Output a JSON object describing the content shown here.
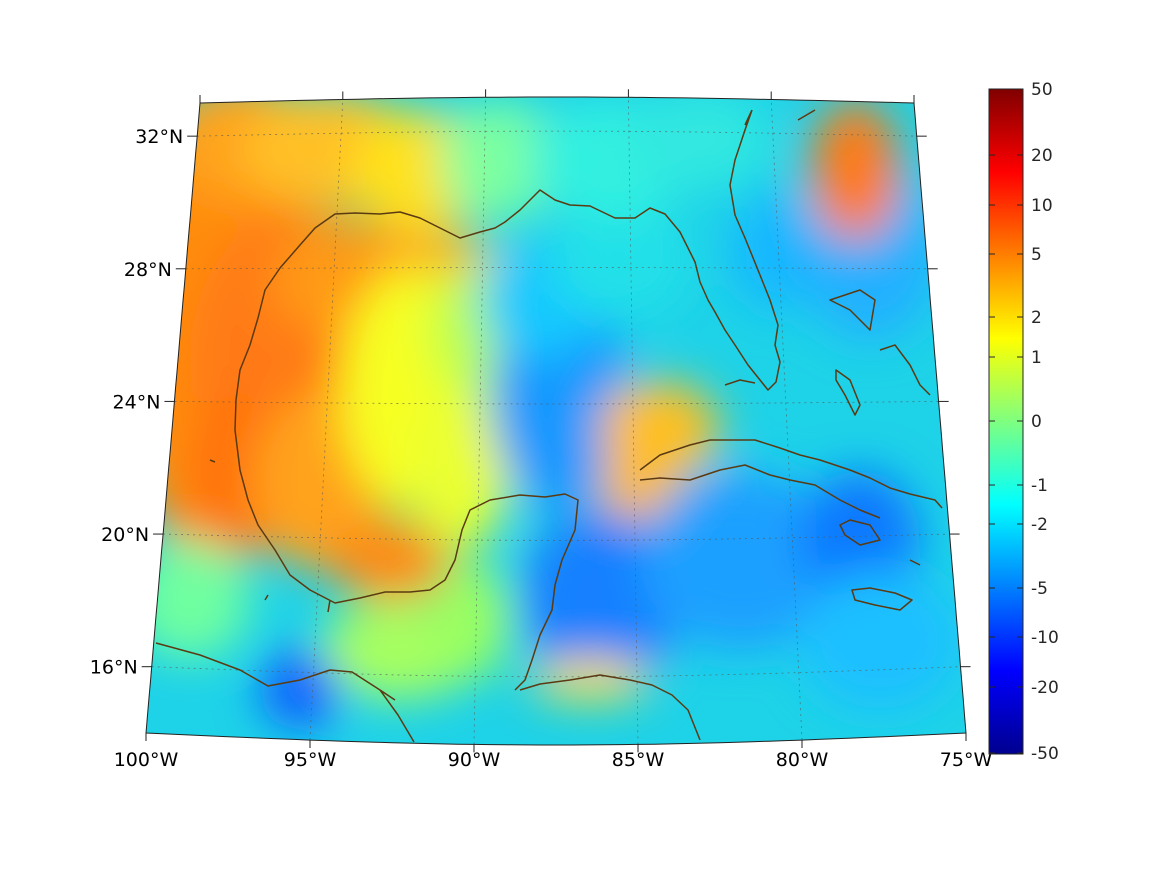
{
  "map": {
    "projection": "conic",
    "extent": {
      "lon": [
        -100,
        -75
      ],
      "lat": [
        14,
        33
      ]
    },
    "grid": true,
    "coastline_color": "#5a3a12",
    "lon_ticks": [
      {
        "value": -100,
        "label": "100°W"
      },
      {
        "value": -95,
        "label": "95°W"
      },
      {
        "value": -90,
        "label": "90°W"
      },
      {
        "value": -85,
        "label": "85°W"
      },
      {
        "value": -80,
        "label": "80°W"
      },
      {
        "value": -75,
        "label": "75°W"
      }
    ],
    "lat_ticks": [
      {
        "value": 32,
        "label": "32°N"
      },
      {
        "value": 28,
        "label": "28°N"
      },
      {
        "value": 24,
        "label": "24°N"
      },
      {
        "value": 20,
        "label": "20°N"
      },
      {
        "value": 16,
        "label": "16°N"
      }
    ]
  },
  "colorbar": {
    "colormap": "jet",
    "placement": "right",
    "ticks": [
      "50",
      "20",
      "10",
      "5",
      "2",
      "1",
      "0",
      "-1",
      "-2",
      "-5",
      "-10",
      "-20",
      "-50"
    ]
  }
}
